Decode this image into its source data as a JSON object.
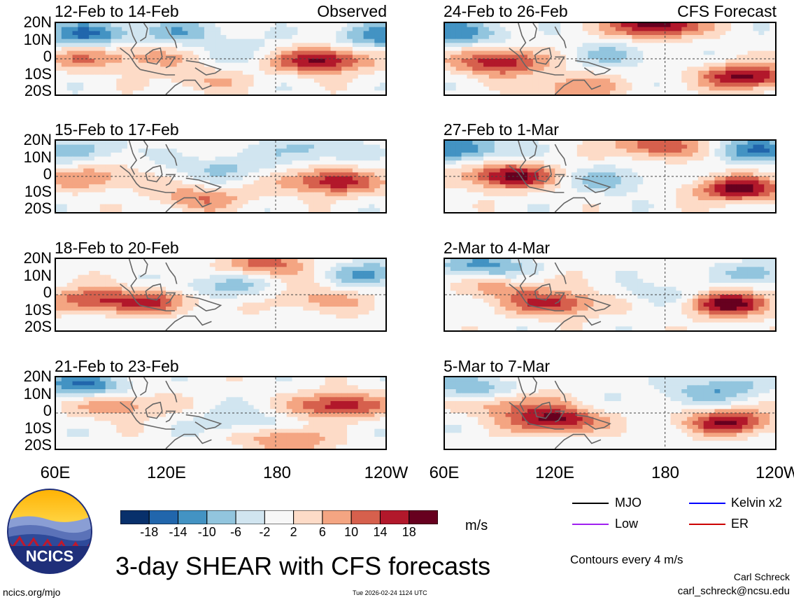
{
  "panels_left": [
    {
      "date": "12-Feb to 14-Feb",
      "tag": "Observed"
    },
    {
      "date": "15-Feb to 17-Feb",
      "tag": ""
    },
    {
      "date": "18-Feb to 20-Feb",
      "tag": ""
    },
    {
      "date": "21-Feb to 23-Feb",
      "tag": ""
    }
  ],
  "panels_right": [
    {
      "date": "24-Feb to 26-Feb",
      "tag": "CFS Forecast"
    },
    {
      "date": "27-Feb to 1-Mar",
      "tag": ""
    },
    {
      "date": "2-Mar to 4-Mar",
      "tag": ""
    },
    {
      "date": "5-Mar to 7-Mar",
      "tag": ""
    }
  ],
  "y_ticks": [
    "20N",
    "10N",
    "0",
    "10S",
    "20S"
  ],
  "x_ticks_left": [
    "60E",
    "120E",
    "180",
    "120W"
  ],
  "x_ticks_right": [
    "60E",
    "120E",
    "180",
    "120W"
  ],
  "colorbar": {
    "colors": [
      "#08306b",
      "#2166ac",
      "#4393c3",
      "#92c5de",
      "#d1e5f0",
      "#f7f7f7",
      "#fddbc7",
      "#f4a582",
      "#d6604d",
      "#b2182b",
      "#67001f"
    ],
    "ticks": [
      "-18",
      "-14",
      "-10",
      "-6",
      "-2",
      "2",
      "6",
      "10",
      "14",
      "18"
    ],
    "units": "m/s"
  },
  "legend": {
    "items": [
      {
        "label": "MJO",
        "color": "#000000"
      },
      {
        "label": "Kelvin x2",
        "color": "#0000ff"
      },
      {
        "label": "Low",
        "color": "#a020f0"
      },
      {
        "label": "ER",
        "color": "#cc0000"
      }
    ],
    "contours_note": "Contours every 4 m/s"
  },
  "logo_text": "NCICS",
  "main_title": "3-day SHEAR with CFS forecasts",
  "author": "Carl Schreck",
  "email": "carl_schreck@ncsu.edu",
  "site": "ncics.org/mjo",
  "timestamp": "Tue 2026-02-24 1124 UTC",
  "chart_data": {
    "type": "heatmap",
    "title": "3-day SHEAR with CFS forecasts",
    "variable": "vertical wind shear anomaly",
    "units": "m/s",
    "lat_range": [
      -20,
      20
    ],
    "lon_range": [
      60,
      240
    ],
    "xlabel": "",
    "ylabel": "",
    "color_levels": [
      -18,
      -14,
      -10,
      -6,
      -2,
      2,
      6,
      10,
      14,
      18
    ],
    "contour_interval": 4,
    "panels": [
      {
        "period": "12-Feb to 14-Feb",
        "source": "Observed",
        "blobs": [
          {
            "lon": 205,
            "lat": -1,
            "value": 20
          },
          {
            "lon": 75,
            "lat": 0,
            "value": 8
          },
          {
            "lon": 110,
            "lat": 1,
            "value": 7
          },
          {
            "lon": 78,
            "lat": 14,
            "value": -14
          },
          {
            "lon": 128,
            "lat": 15,
            "value": -8
          },
          {
            "lon": 236,
            "lat": 13,
            "value": -12
          },
          {
            "lon": 160,
            "lat": 5,
            "value": -4
          },
          {
            "lon": 140,
            "lat": -12,
            "value": 6
          }
        ]
      },
      {
        "period": "15-Feb to 17-Feb",
        "source": "Observed",
        "blobs": [
          {
            "lon": 210,
            "lat": -3,
            "value": 18
          },
          {
            "lon": 80,
            "lat": -1,
            "value": 10
          },
          {
            "lon": 140,
            "lat": -12,
            "value": 10
          },
          {
            "lon": 75,
            "lat": 15,
            "value": -8
          },
          {
            "lon": 150,
            "lat": 5,
            "value": -7
          },
          {
            "lon": 200,
            "lat": 15,
            "value": -8
          }
        ]
      },
      {
        "period": "18-Feb to 20-Feb",
        "source": "Observed",
        "blobs": [
          {
            "lon": 175,
            "lat": 17,
            "value": 12
          },
          {
            "lon": 80,
            "lat": -3,
            "value": 14
          },
          {
            "lon": 115,
            "lat": -4,
            "value": 12
          },
          {
            "lon": 205,
            "lat": -3,
            "value": 8
          },
          {
            "lon": 150,
            "lat": 5,
            "value": -8
          },
          {
            "lon": 232,
            "lat": 12,
            "value": -10
          }
        ]
      },
      {
        "period": "21-Feb to 23-Feb",
        "source": "Observed",
        "blobs": [
          {
            "lon": 215,
            "lat": 4,
            "value": 18
          },
          {
            "lon": 190,
            "lat": -14,
            "value": 16
          },
          {
            "lon": 95,
            "lat": 4,
            "value": 10
          },
          {
            "lon": 75,
            "lat": 16,
            "value": -14
          },
          {
            "lon": 160,
            "lat": -5,
            "value": -6
          },
          {
            "lon": 200,
            "lat": -12,
            "value": -6
          }
        ]
      },
      {
        "period": "24-Feb to 26-Feb",
        "source": "CFS Forecast",
        "blobs": [
          {
            "lon": 175,
            "lat": 19,
            "value": 22
          },
          {
            "lon": 90,
            "lat": -2,
            "value": 18
          },
          {
            "lon": 225,
            "lat": -10,
            "value": 20
          },
          {
            "lon": 70,
            "lat": 15,
            "value": -12
          },
          {
            "lon": 150,
            "lat": 2,
            "value": -6
          },
          {
            "lon": 130,
            "lat": -16,
            "value": 10
          }
        ]
      },
      {
        "period": "27-Feb to 1-Mar",
        "source": "CFS Forecast",
        "blobs": [
          {
            "lon": 95,
            "lat": 0,
            "value": 20
          },
          {
            "lon": 220,
            "lat": -7,
            "value": 20
          },
          {
            "lon": 175,
            "lat": 17,
            "value": 14
          },
          {
            "lon": 70,
            "lat": 16,
            "value": -14
          },
          {
            "lon": 150,
            "lat": -2,
            "value": -8
          },
          {
            "lon": 235,
            "lat": 15,
            "value": -14
          }
        ]
      },
      {
        "period": "2-Mar to 4-Mar",
        "source": "CFS Forecast",
        "blobs": [
          {
            "lon": 120,
            "lat": -5,
            "value": 16
          },
          {
            "lon": 215,
            "lat": -5,
            "value": 20
          },
          {
            "lon": 90,
            "lat": 4,
            "value": 8
          },
          {
            "lon": 80,
            "lat": 16,
            "value": -12
          },
          {
            "lon": 180,
            "lat": 0,
            "value": -5
          },
          {
            "lon": 235,
            "lat": 12,
            "value": -8
          }
        ]
      },
      {
        "period": "5-Mar to 7-Mar",
        "source": "CFS Forecast",
        "blobs": [
          {
            "lon": 120,
            "lat": -4,
            "value": 20
          },
          {
            "lon": 215,
            "lat": -5,
            "value": 18
          },
          {
            "lon": 95,
            "lat": 5,
            "value": 10
          },
          {
            "lon": 75,
            "lat": 14,
            "value": -10
          },
          {
            "lon": 190,
            "lat": 10,
            "value": -4
          },
          {
            "lon": 215,
            "lat": 14,
            "value": -8
          }
        ]
      }
    ]
  }
}
